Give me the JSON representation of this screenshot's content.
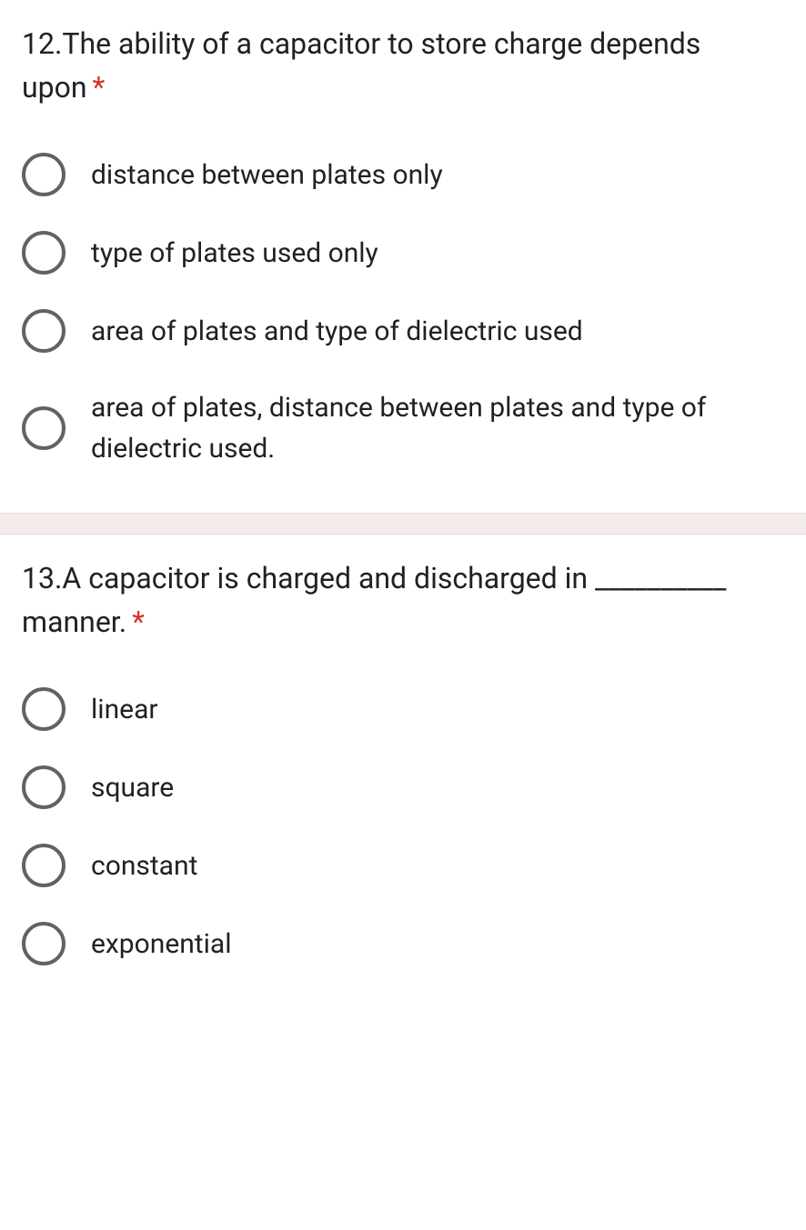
{
  "colors": {
    "text": "#202124",
    "required": "#d93025",
    "radio_border": "#5f6368",
    "separator_bg": "#f4ece9",
    "separator_border": "#dadce0",
    "background": "#ffffff"
  },
  "questions": [
    {
      "number": "12",
      "text": "12.The ability of a capacitor to store charge depends upon",
      "required": true,
      "required_marker": "*",
      "options": [
        "distance between plates only",
        "type of plates used only",
        "area of plates and type of dielectric used",
        "area of plates, distance between plates and type of dielectric used."
      ]
    },
    {
      "number": "13",
      "text": "13.A capacitor is charged and discharged in __________ manner.",
      "required": true,
      "required_marker": "*",
      "options": [
        "linear",
        "square",
        "constant",
        "exponential"
      ]
    }
  ]
}
